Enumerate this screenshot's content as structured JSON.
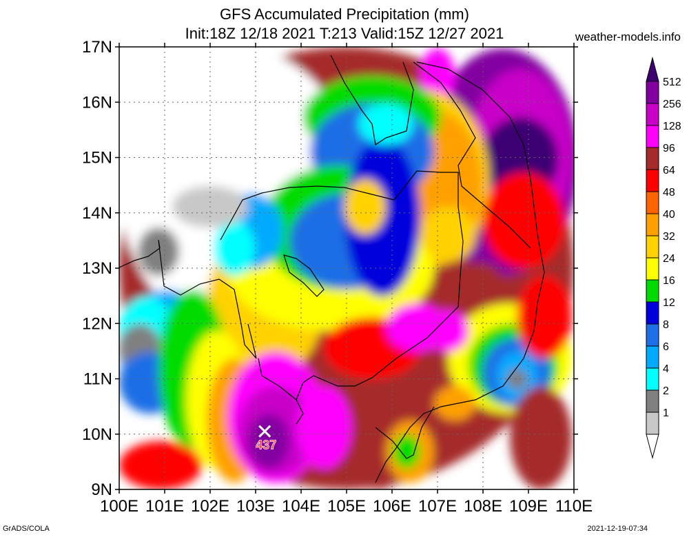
{
  "header": {
    "title": "GFS Accumulated Precipitation (mm)",
    "subtitle": "Init:18Z 12/18 2021 T:213 Valid:15Z 12/27 2021",
    "site": "weather-models.info"
  },
  "footer": {
    "left": "GrADS/COLA",
    "right": "2021-12-19-07:34"
  },
  "map": {
    "lat_labels": [
      "17N",
      "16N",
      "15N",
      "14N",
      "13N",
      "12N",
      "11N",
      "10N",
      "9N"
    ],
    "lon_labels": [
      "100E",
      "101E",
      "102E",
      "103E",
      "104E",
      "105E",
      "106E",
      "107E",
      "108E",
      "109E",
      "110E"
    ],
    "extent": {
      "lon_min": 100,
      "lon_max": 110,
      "lat_min": 9,
      "lat_max": 17
    },
    "max_marker": {
      "lon": 103.2,
      "lat": 10.05,
      "value": "437"
    }
  },
  "colorbar": {
    "levels": [
      "512",
      "256",
      "128",
      "96",
      "64",
      "48",
      "40",
      "32",
      "24",
      "16",
      "12",
      "8",
      "6",
      "4",
      "2",
      "1"
    ],
    "colors": [
      "#3c0073",
      "#8200a0",
      "#c800c8",
      "#ff00ff",
      "#a52a2a",
      "#ff0000",
      "#ff6400",
      "#ffa000",
      "#ffd200",
      "#ffff00",
      "#00dc00",
      "#0000dc",
      "#1e6ee6",
      "#00aaff",
      "#00ffff",
      "#808080",
      "#c8c8c8",
      "#ffffff"
    ]
  },
  "palette": {
    "none": "#ffffff",
    "lt_gray": "#c8c8c8",
    "gray": "#808080",
    "cyan": "#00ffff",
    "sky": "#00aaff",
    "blue": "#1e6ee6",
    "dblue": "#0000dc",
    "green": "#00dc00",
    "yellow": "#ffff00",
    "gold": "#ffd200",
    "orange": "#ffa000",
    "dorange": "#ff6400",
    "red": "#ff0000",
    "brown": "#a52a2a",
    "magenta": "#ff00ff",
    "violet": "#c800c8",
    "purple": "#8200a0",
    "dpurple": "#3c0073"
  }
}
